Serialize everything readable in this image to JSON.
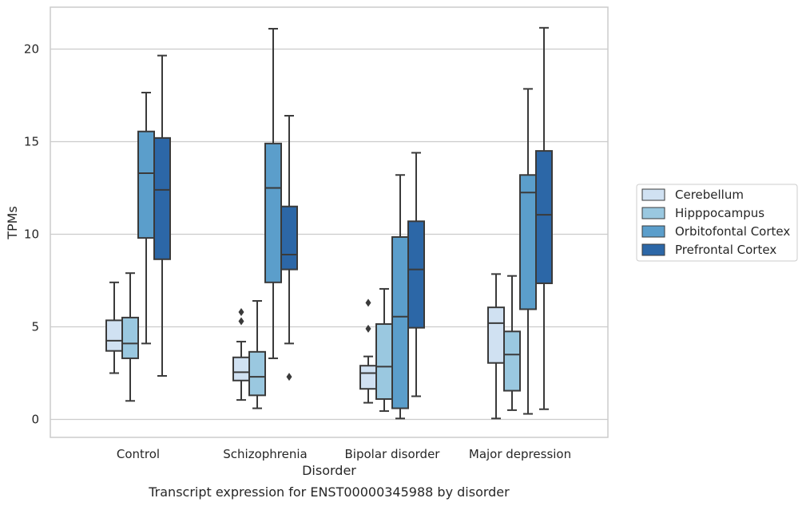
{
  "chart_data": {
    "type": "box",
    "title": "",
    "caption": "Transcript expression for ENST00000345988 by disorder",
    "xlabel": "Disorder",
    "ylabel": "TPMs",
    "ylim": [
      -0.9,
      22.4
    ],
    "yticks": [
      0,
      5,
      10,
      15,
      20
    ],
    "grid": true,
    "legend_position": "right",
    "categories": [
      "Control",
      "Schizophrenia",
      "Bipolar disorder",
      "Major depression"
    ],
    "series": [
      {
        "name": "Cerebellum",
        "color": "#d0e1f2",
        "boxes": [
          {
            "whisker_low": 2.5,
            "q1": 3.7,
            "median": 4.25,
            "q3": 5.35,
            "whisker_high": 7.4,
            "outliers": []
          },
          {
            "whisker_low": 1.05,
            "q1": 2.1,
            "median": 2.55,
            "q3": 3.35,
            "whisker_high": 4.2,
            "outliers": [
              5.3,
              5.8
            ]
          },
          {
            "whisker_low": 0.9,
            "q1": 1.65,
            "median": 2.5,
            "q3": 2.9,
            "whisker_high": 3.4,
            "outliers": [
              4.9,
              6.3
            ]
          },
          {
            "whisker_low": 0.05,
            "q1": 3.05,
            "median": 5.2,
            "q3": 6.05,
            "whisker_high": 7.85,
            "outliers": []
          }
        ]
      },
      {
        "name": "Hipppocampus",
        "color": "#9ac8e0",
        "boxes": [
          {
            "whisker_low": 1.0,
            "q1": 3.3,
            "median": 4.1,
            "q3": 5.5,
            "whisker_high": 7.9,
            "outliers": []
          },
          {
            "whisker_low": 0.6,
            "q1": 1.3,
            "median": 2.3,
            "q3": 3.65,
            "whisker_high": 6.4,
            "outliers": []
          },
          {
            "whisker_low": 0.45,
            "q1": 1.1,
            "median": 2.85,
            "q3": 5.15,
            "whisker_high": 7.05,
            "outliers": []
          },
          {
            "whisker_low": 0.5,
            "q1": 1.55,
            "median": 3.5,
            "q3": 4.75,
            "whisker_high": 7.75,
            "outliers": []
          }
        ]
      },
      {
        "name": "Orbitofontal Cortex",
        "color": "#5b9ecb",
        "boxes": [
          {
            "whisker_low": 4.1,
            "q1": 9.8,
            "median": 13.3,
            "q3": 15.55,
            "whisker_high": 17.65,
            "outliers": []
          },
          {
            "whisker_low": 3.3,
            "q1": 7.4,
            "median": 12.5,
            "q3": 14.9,
            "whisker_high": 21.1,
            "outliers": []
          },
          {
            "whisker_low": 0.05,
            "q1": 0.6,
            "median": 5.55,
            "q3": 9.85,
            "whisker_high": 13.2,
            "outliers": []
          },
          {
            "whisker_low": 0.3,
            "q1": 5.95,
            "median": 12.25,
            "q3": 13.2,
            "whisker_high": 17.85,
            "outliers": []
          }
        ]
      },
      {
        "name": "Prefrontal Cortex",
        "color": "#2c67a7",
        "boxes": [
          {
            "whisker_low": 2.35,
            "q1": 8.65,
            "median": 12.4,
            "q3": 15.2,
            "whisker_high": 19.65,
            "outliers": []
          },
          {
            "whisker_low": 4.1,
            "q1": 8.1,
            "median": 8.9,
            "q3": 11.5,
            "whisker_high": 16.4,
            "outliers": [
              2.3
            ]
          },
          {
            "whisker_low": 1.25,
            "q1": 4.95,
            "median": 8.1,
            "q3": 10.7,
            "whisker_high": 14.4,
            "outliers": []
          },
          {
            "whisker_low": 0.55,
            "q1": 7.35,
            "median": 11.05,
            "q3": 14.5,
            "whisker_high": 21.15,
            "outliers": []
          }
        ]
      }
    ],
    "colors": {
      "grid": "#cccccc",
      "frame": "#cccccc",
      "line": "#3a3a3a"
    }
  }
}
